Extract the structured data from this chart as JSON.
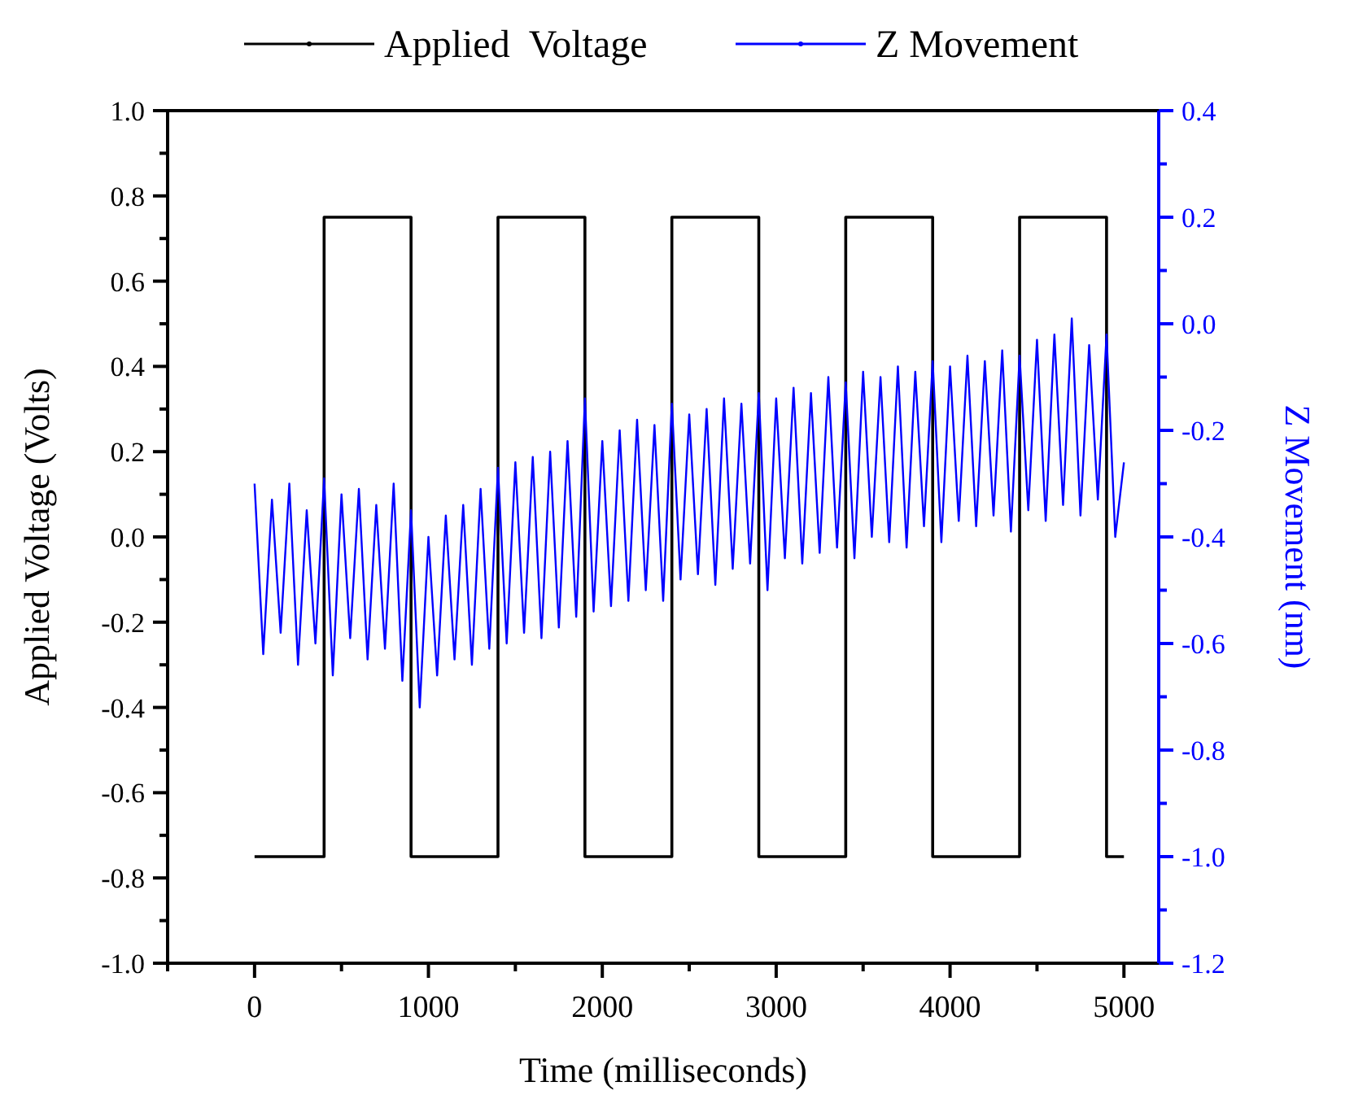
{
  "chart_data": {
    "type": "line",
    "xlabel": "Time (milliseconds)",
    "ylabel": "Applied Voltage (Volts)",
    "y2label": "Z Movement (nm)",
    "xlim": [
      -500,
      5200
    ],
    "xticks": [
      {
        "value": -500,
        "label": null
      },
      0,
      {
        "value": 500,
        "label": null
      },
      1000,
      {
        "value": 1500,
        "label": null
      },
      2000,
      {
        "value": 2500,
        "label": null
      },
      3000,
      {
        "value": 3500,
        "label": null
      },
      4000,
      {
        "value": 4500,
        "label": null
      },
      5000
    ],
    "ylim": [
      -1.0,
      1.0
    ],
    "yticks": [
      {
        "value": -1.0,
        "label": "-1.0"
      },
      {
        "value": -0.9,
        "label": null
      },
      {
        "value": -0.8,
        "label": "-0.8"
      },
      {
        "value": -0.7,
        "label": null
      },
      {
        "value": -0.6,
        "label": "-0.6"
      },
      {
        "value": -0.5,
        "label": null
      },
      {
        "value": -0.4,
        "label": "-0.4"
      },
      {
        "value": -0.3,
        "label": null
      },
      {
        "value": -0.2,
        "label": "-0.2"
      },
      {
        "value": -0.1,
        "label": null
      },
      {
        "value": 0,
        "label": "0.0"
      },
      {
        "value": 0.1,
        "label": null
      },
      {
        "value": 0.2,
        "label": "0.2"
      },
      {
        "value": 0.3,
        "label": null
      },
      {
        "value": 0.4,
        "label": "0.4"
      },
      {
        "value": 0.5,
        "label": null
      },
      {
        "value": 0.6,
        "label": "0.6"
      },
      {
        "value": 0.7,
        "label": null
      },
      {
        "value": 0.8,
        "label": "0.8"
      },
      {
        "value": 0.9,
        "label": null
      },
      {
        "value": 1.0,
        "label": "1.0"
      }
    ],
    "y2lim": [
      -1.2,
      0.4
    ],
    "y2ticks": [
      {
        "value": -1.2,
        "label": "-1.2"
      },
      {
        "value": -1.1,
        "label": null
      },
      {
        "value": -1.0,
        "label": "-1.0"
      },
      {
        "value": -0.9,
        "label": null
      },
      {
        "value": -0.8,
        "label": "-0.8"
      },
      {
        "value": -0.7,
        "label": null
      },
      {
        "value": -0.6,
        "label": "-0.6"
      },
      {
        "value": -0.5,
        "label": null
      },
      {
        "value": -0.4,
        "label": "-0.4"
      },
      {
        "value": -0.3,
        "label": null
      },
      {
        "value": -0.2,
        "label": "-0.2"
      },
      {
        "value": -0.1,
        "label": null
      },
      {
        "value": 0,
        "label": "0.0"
      },
      {
        "value": 0.1,
        "label": null
      },
      {
        "value": 0.2,
        "label": "0.2"
      },
      {
        "value": 0.3,
        "label": null
      },
      {
        "value": 0.4,
        "label": "0.4"
      }
    ],
    "legend": "top",
    "grid": false,
    "series": [
      {
        "name": "Applied  Voltage",
        "color": "#000000",
        "x": [
          0,
          400,
          400,
          900,
          900,
          1400,
          1400,
          1900,
          1900,
          2400,
          2400,
          2900,
          2900,
          3400,
          3400,
          3900,
          3900,
          4400,
          4400,
          4900,
          4900,
          5000
        ],
        "values": [
          -0.75,
          -0.75,
          0.75,
          0.75,
          -0.75,
          -0.75,
          0.75,
          0.75,
          -0.75,
          -0.75,
          0.75,
          0.75,
          -0.75,
          -0.75,
          0.75,
          0.75,
          -0.75,
          -0.75,
          0.75,
          0.75,
          -0.75,
          -0.75
        ]
      },
      {
        "name": "Z Movement",
        "color": "#0000ff",
        "axis": "y2",
        "x": [
          0,
          50,
          100,
          150,
          200,
          250,
          300,
          350,
          400,
          450,
          500,
          550,
          600,
          650,
          700,
          750,
          800,
          850,
          900,
          950,
          1000,
          1050,
          1100,
          1150,
          1200,
          1250,
          1300,
          1350,
          1400,
          1450,
          1500,
          1550,
          1600,
          1650,
          1700,
          1750,
          1800,
          1850,
          1900,
          1950,
          2000,
          2050,
          2100,
          2150,
          2200,
          2250,
          2300,
          2350,
          2400,
          2450,
          2500,
          2550,
          2600,
          2650,
          2700,
          2750,
          2800,
          2850,
          2900,
          2950,
          3000,
          3050,
          3100,
          3150,
          3200,
          3250,
          3300,
          3350,
          3400,
          3450,
          3500,
          3550,
          3600,
          3650,
          3700,
          3750,
          3800,
          3850,
          3900,
          3950,
          4000,
          4050,
          4100,
          4150,
          4200,
          4250,
          4300,
          4350,
          4400,
          4450,
          4500,
          4550,
          4600,
          4650,
          4700,
          4750,
          4800,
          4850,
          4900,
          4950,
          5000
        ],
        "values": [
          -0.3,
          -0.62,
          -0.33,
          -0.58,
          -0.3,
          -0.64,
          -0.35,
          -0.6,
          -0.29,
          -0.66,
          -0.32,
          -0.59,
          -0.31,
          -0.63,
          -0.34,
          -0.61,
          -0.3,
          -0.67,
          -0.35,
          -0.72,
          -0.4,
          -0.66,
          -0.36,
          -0.63,
          -0.34,
          -0.64,
          -0.31,
          -0.61,
          -0.27,
          -0.6,
          -0.26,
          -0.58,
          -0.25,
          -0.59,
          -0.24,
          -0.57,
          -0.22,
          -0.55,
          -0.14,
          -0.54,
          -0.22,
          -0.53,
          -0.2,
          -0.52,
          -0.18,
          -0.5,
          -0.19,
          -0.52,
          -0.15,
          -0.48,
          -0.17,
          -0.47,
          -0.16,
          -0.49,
          -0.14,
          -0.46,
          -0.15,
          -0.45,
          -0.13,
          -0.5,
          -0.14,
          -0.44,
          -0.12,
          -0.45,
          -0.13,
          -0.43,
          -0.1,
          -0.42,
          -0.11,
          -0.44,
          -0.09,
          -0.4,
          -0.1,
          -0.41,
          -0.08,
          -0.42,
          -0.09,
          -0.38,
          -0.07,
          -0.41,
          -0.08,
          -0.37,
          -0.06,
          -0.38,
          -0.07,
          -0.36,
          -0.05,
          -0.39,
          -0.06,
          -0.35,
          -0.03,
          -0.37,
          -0.02,
          -0.34,
          0.01,
          -0.36,
          -0.04,
          -0.33,
          -0.02,
          -0.4,
          -0.26
        ]
      }
    ]
  }
}
